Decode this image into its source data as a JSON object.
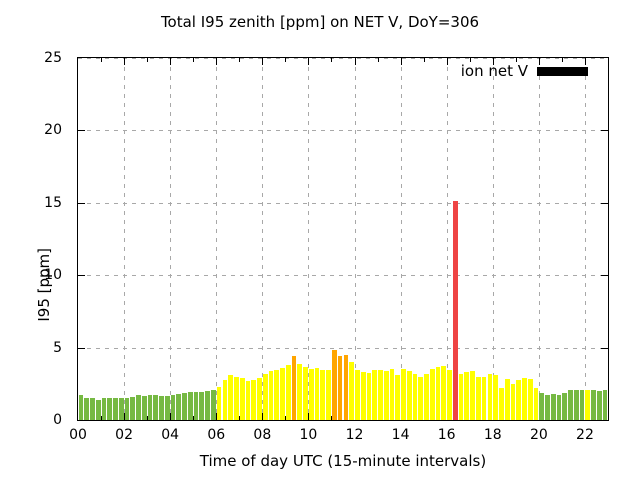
{
  "chart_data": {
    "type": "bar",
    "title": "Total I95 zenith [ppm] on NET V, DoY=306",
    "xlabel": "Time of day UTC (15-minute intervals)",
    "ylabel": "I95 [ppm]",
    "ylim": [
      0,
      25
    ],
    "xlim_hours": [
      0,
      23
    ],
    "interval_minutes": 15,
    "grid": true,
    "background": "#ffffff",
    "legend": {
      "label": "ion net V",
      "swatch_color": "#000000",
      "position": "top-right-inside"
    },
    "x_tick_labels": [
      "00",
      "02",
      "04",
      "06",
      "08",
      "10",
      "12",
      "14",
      "16",
      "18",
      "20",
      "22"
    ],
    "x_tick_hours": [
      0,
      2,
      4,
      6,
      8,
      10,
      12,
      14,
      16,
      18,
      20,
      22
    ],
    "y_tick_labels": [
      "0",
      "5",
      "10",
      "15",
      "20",
      "25"
    ],
    "y_tick_values": [
      0,
      5,
      10,
      15,
      20,
      25
    ],
    "color_key": {
      "g": "#76b943",
      "y": "#ffff00",
      "o": "#ffa500",
      "r": "#ee4444"
    },
    "bar_color_codes": "ggggggggggggggggggggggggyyyyyyyyyyyyyoyyyyyyoooyyyyyyyyyyyyyyyyyyryyyyyyyyyyyyyyggggggggyggg",
    "times": [
      "00:00",
      "00:15",
      "00:30",
      "00:45",
      "01:00",
      "01:15",
      "01:30",
      "01:45",
      "02:00",
      "02:15",
      "02:30",
      "02:45",
      "03:00",
      "03:15",
      "03:30",
      "03:45",
      "04:00",
      "04:15",
      "04:30",
      "04:45",
      "05:00",
      "05:15",
      "05:30",
      "05:45",
      "06:00",
      "06:15",
      "06:30",
      "06:45",
      "07:00",
      "07:15",
      "07:30",
      "07:45",
      "08:00",
      "08:15",
      "08:30",
      "08:45",
      "09:00",
      "09:15",
      "09:30",
      "09:45",
      "10:00",
      "10:15",
      "10:30",
      "10:45",
      "11:00",
      "11:15",
      "11:30",
      "11:45",
      "12:00",
      "12:15",
      "12:30",
      "12:45",
      "13:00",
      "13:15",
      "13:30",
      "13:45",
      "14:00",
      "14:15",
      "14:30",
      "14:45",
      "15:00",
      "15:15",
      "15:30",
      "15:45",
      "16:00",
      "16:15",
      "16:30",
      "16:45",
      "17:00",
      "17:15",
      "17:30",
      "17:45",
      "18:00",
      "18:15",
      "18:30",
      "18:45",
      "19:00",
      "19:15",
      "19:30",
      "19:45",
      "20:00",
      "20:15",
      "20:30",
      "20:45",
      "21:00",
      "21:15",
      "21:30",
      "21:45",
      "22:00",
      "22:15",
      "22:30",
      "22:45"
    ],
    "values": [
      1.7,
      1.55,
      1.55,
      1.4,
      1.5,
      1.5,
      1.5,
      1.5,
      1.55,
      1.6,
      1.7,
      1.65,
      1.7,
      1.7,
      1.65,
      1.65,
      1.75,
      1.8,
      1.85,
      1.9,
      1.95,
      1.95,
      2.0,
      2.1,
      2.3,
      2.75,
      3.1,
      2.95,
      2.9,
      2.7,
      2.75,
      2.9,
      3.2,
      3.35,
      3.45,
      3.6,
      3.8,
      4.4,
      3.85,
      3.65,
      3.5,
      3.6,
      3.45,
      3.45,
      4.8,
      4.4,
      4.5,
      4.0,
      3.45,
      3.3,
      3.25,
      3.45,
      3.45,
      3.35,
      3.5,
      3.1,
      3.5,
      3.4,
      3.2,
      3.0,
      3.2,
      3.5,
      3.65,
      3.75,
      3.45,
      15.1,
      3.2,
      3.3,
      3.4,
      2.95,
      2.95,
      3.2,
      3.1,
      2.2,
      2.85,
      2.5,
      2.75,
      2.9,
      2.85,
      2.2,
      1.85,
      1.75,
      1.8,
      1.75,
      1.85,
      2.05,
      2.1,
      2.05,
      2.1,
      2.1,
      2.0,
      2.1
    ]
  }
}
